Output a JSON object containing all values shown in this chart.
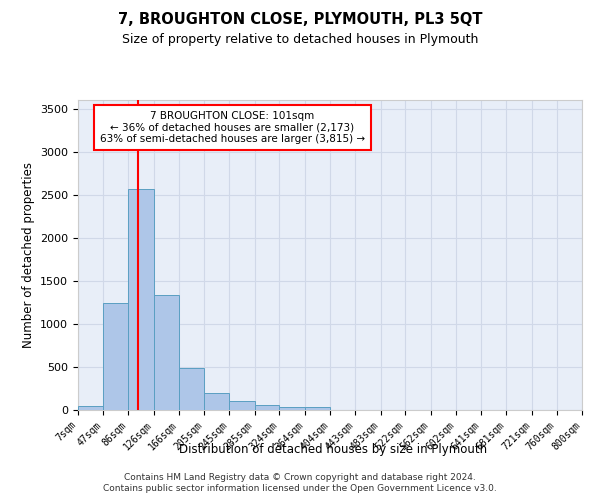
{
  "title": "7, BROUGHTON CLOSE, PLYMOUTH, PL3 5QT",
  "subtitle": "Size of property relative to detached houses in Plymouth",
  "xlabel": "Distribution of detached houses by size in Plymouth",
  "ylabel": "Number of detached properties",
  "bin_edges": [
    7,
    47,
    86,
    126,
    166,
    205,
    245,
    285,
    324,
    364,
    404,
    443,
    483,
    522,
    562,
    602,
    641,
    681,
    721,
    760,
    800
  ],
  "bin_counts": [
    50,
    1240,
    2570,
    1340,
    490,
    195,
    100,
    55,
    40,
    30,
    5,
    5,
    5,
    0,
    0,
    0,
    0,
    0,
    0,
    0
  ],
  "bar_color": "#aec6e8",
  "bar_edge_color": "#5a9fc2",
  "vline_x": 101,
  "vline_color": "red",
  "annotation_text": "7 BROUGHTON CLOSE: 101sqm\n← 36% of detached houses are smaller (2,173)\n63% of semi-detached houses are larger (3,815) →",
  "annotation_box_color": "white",
  "annotation_box_edge_color": "red",
  "ylim": [
    0,
    3600
  ],
  "yticks": [
    0,
    500,
    1000,
    1500,
    2000,
    2500,
    3000,
    3500
  ],
  "grid_color": "#d0d8e8",
  "background_color": "#e8eef8",
  "footnote1": "Contains HM Land Registry data © Crown copyright and database right 2024.",
  "footnote2": "Contains public sector information licensed under the Open Government Licence v3.0."
}
